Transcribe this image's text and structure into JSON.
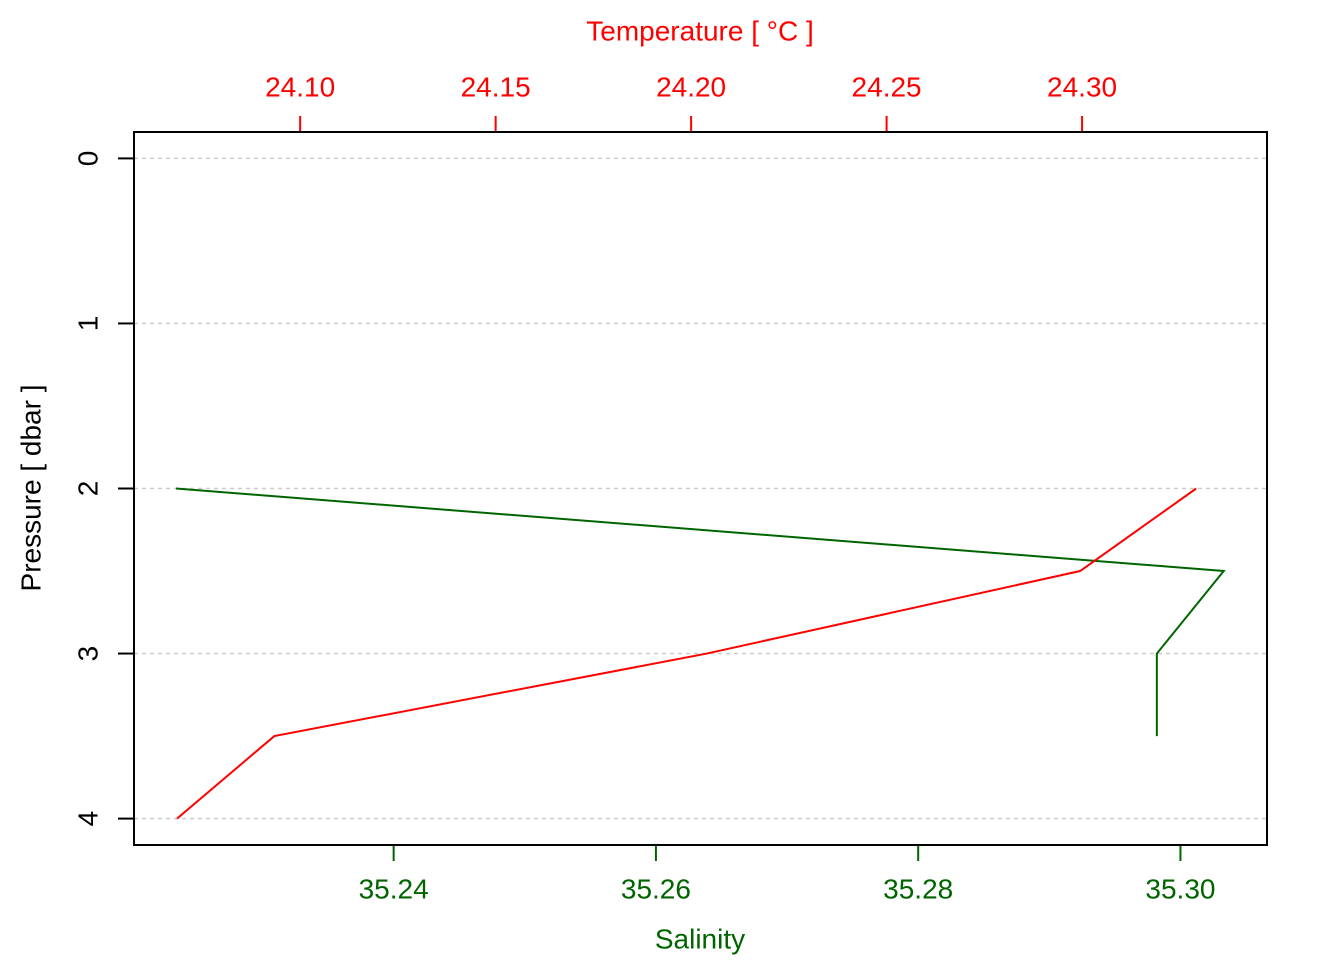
{
  "chart_data": {
    "type": "profile",
    "ylabel": "Pressure [ dbar ]",
    "y": [
      2,
      2.5,
      3,
      3.5,
      4
    ],
    "ylim": [
      4.16,
      -0.16
    ],
    "yticks": [
      0,
      1,
      2,
      3,
      4
    ],
    "grid": true,
    "xlabel": "Salinity",
    "xlim": [
      35.2202,
      35.3066
    ],
    "xticks": [
      35.24,
      35.26,
      35.28,
      {
        "value": 35.3,
        "label": "35.30"
      }
    ],
    "x2label": "Temperature [ °C ]",
    "x2lim": [
      24.0575,
      24.3473
    ],
    "x2ticks": [
      {
        "value": 24.1,
        "label": "24.10"
      },
      24.15,
      {
        "value": 24.2,
        "label": "24.20"
      },
      24.25,
      {
        "value": 24.3,
        "label": "24.30"
      }
    ],
    "series": [
      {
        "name": "Salinity",
        "color": "#006400",
        "axis": "x",
        "values": [
          35.2234,
          35.3033,
          35.2982,
          35.2982,
          null
        ]
      },
      {
        "name": "Temperature",
        "color": "#ff0000",
        "axis": "x2",
        "values": [
          24.3292,
          24.2995,
          24.204,
          24.0934,
          24.0685
        ]
      }
    ]
  }
}
